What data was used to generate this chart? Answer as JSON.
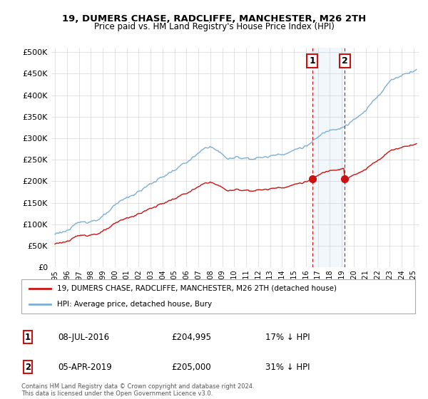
{
  "title": "19, DUMERS CHASE, RADCLIFFE, MANCHESTER, M26 2TH",
  "subtitle": "Price paid vs. HM Land Registry's House Price Index (HPI)",
  "ytick_labels": [
    "£0",
    "£50K",
    "£100K",
    "£150K",
    "£200K",
    "£250K",
    "£300K",
    "£350K",
    "£400K",
    "£450K",
    "£500K"
  ],
  "yticks": [
    0,
    50000,
    100000,
    150000,
    200000,
    250000,
    300000,
    350000,
    400000,
    450000,
    500000
  ],
  "hpi_color": "#7bafd4",
  "price_color": "#cc1111",
  "marker1_year": 2016.52,
  "marker2_year": 2019.25,
  "marker1_price": 204995,
  "marker2_price": 205000,
  "marker1_label": "08-JUL-2016",
  "marker2_label": "05-APR-2019",
  "marker1_hpi_pct": "17% ↓ HPI",
  "marker2_hpi_pct": "31% ↓ HPI",
  "legend_property": "19, DUMERS CHASE, RADCLIFFE, MANCHESTER, M26 2TH (detached house)",
  "legend_hpi": "HPI: Average price, detached house, Bury",
  "footer": "Contains HM Land Registry data © Crown copyright and database right 2024.\nThis data is licensed under the Open Government Licence v3.0.",
  "ylim": [
    0,
    510000
  ],
  "xlim_left": 1994.7,
  "xlim_right": 2025.5
}
